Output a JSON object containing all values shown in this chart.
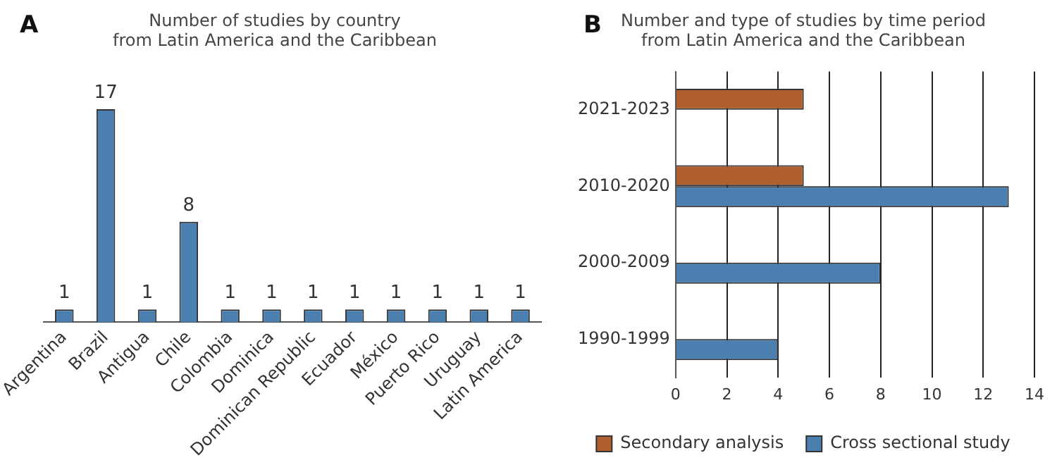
{
  "chart_data": [
    {
      "type": "bar",
      "title": "Number of studies by country\nfrom Latin America and the Caribbean",
      "annotations": [
        "A"
      ],
      "categories": [
        "Argentina",
        "Brazil",
        "Antigua",
        "Chile",
        "Colombia",
        "Dominica",
        "Dominican Republic",
        "Ecuador",
        "México",
        "Puerto Rico",
        "Uruguay",
        "Latin America"
      ],
      "values": [
        1,
        17,
        1,
        8,
        1,
        1,
        1,
        1,
        1,
        1,
        1,
        1
      ],
      "color": "#4a7fb0",
      "data_labels": true,
      "grid": false,
      "legend": false
    },
    {
      "type": "bar",
      "orientation": "horizontal",
      "title": "Number and type of studies by time period\nfrom Latin America and the Caribbean",
      "annotations": [
        "B"
      ],
      "categories": [
        "2021-2023",
        "2010-2020",
        "2000-2009",
        "1990-1999"
      ],
      "series": [
        {
          "name": "Secondary analysis",
          "color": "#b0602e",
          "values": [
            5,
            5,
            null,
            null
          ]
        },
        {
          "name": "Cross sectional study",
          "color": "#4a7fb0",
          "values": [
            null,
            13,
            8,
            4
          ]
        }
      ],
      "xlim": [
        0,
        14
      ],
      "xticks": [
        0,
        2,
        4,
        6,
        8,
        10,
        12,
        14
      ],
      "grid": "x",
      "legend": "bottom"
    }
  ]
}
